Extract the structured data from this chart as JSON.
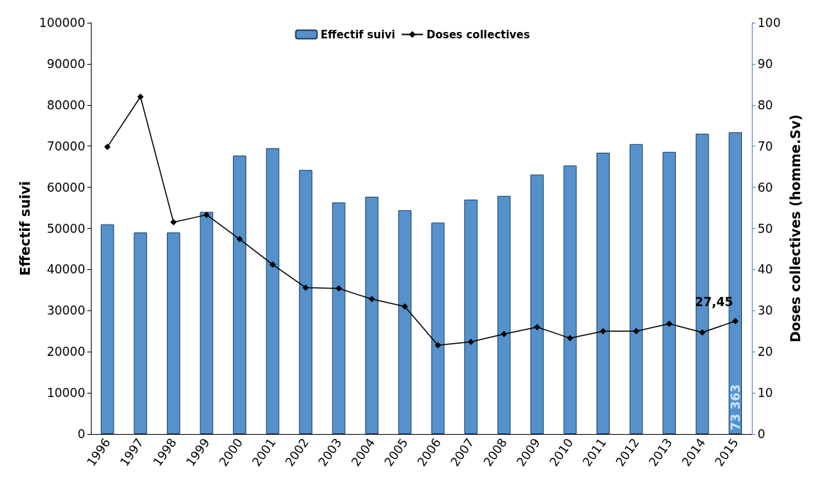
{
  "chart_data": {
    "type": "bar",
    "ylabel": "Effectif suivi",
    "y2label": "Doses collectives (homme.Sv)",
    "categories": [
      "1996",
      "1997",
      "1998",
      "1999",
      "2000",
      "2001",
      "2002",
      "2003",
      "2004",
      "2005",
      "2006",
      "2007",
      "2008",
      "2009",
      "2010",
      "2011",
      "2012",
      "2013",
      "2014",
      "2015"
    ],
    "series": [
      {
        "name": "Effectif suivi",
        "color": "#5592cb",
        "values": [
          51000,
          49000,
          49000,
          54000,
          67700,
          69500,
          64200,
          56300,
          57700,
          54400,
          51400,
          57000,
          57900,
          63100,
          65300,
          68400,
          70500,
          68600,
          73000,
          73363
        ],
        "value_labels": [
          null,
          null,
          null,
          null,
          null,
          null,
          null,
          null,
          null,
          null,
          null,
          null,
          null,
          null,
          null,
          null,
          null,
          null,
          null,
          "73 363"
        ]
      },
      {
        "name": "Doses collectives",
        "type": "line",
        "axis": "y2",
        "color": "#000000",
        "marker": "diamond",
        "values": [
          69.8,
          82,
          51.5,
          53.3,
          47.4,
          41.2,
          35.6,
          35.4,
          32.8,
          31,
          21.6,
          22.4,
          24.3,
          26,
          23.3,
          25,
          25,
          26.8,
          24.7,
          27.45
        ],
        "value_labels": [
          null,
          null,
          null,
          null,
          null,
          null,
          null,
          null,
          null,
          null,
          null,
          null,
          null,
          null,
          null,
          null,
          null,
          null,
          null,
          "27,45"
        ]
      }
    ],
    "ylim": [
      0,
      100000
    ],
    "yticks": [
      0,
      10000,
      20000,
      30000,
      40000,
      50000,
      60000,
      70000,
      80000,
      90000,
      100000
    ],
    "y2lim": [
      0,
      100
    ],
    "y2ticks": [
      0,
      10,
      20,
      30,
      40,
      50,
      60,
      70,
      80,
      90,
      100
    ],
    "grid": false,
    "legend": "top"
  }
}
